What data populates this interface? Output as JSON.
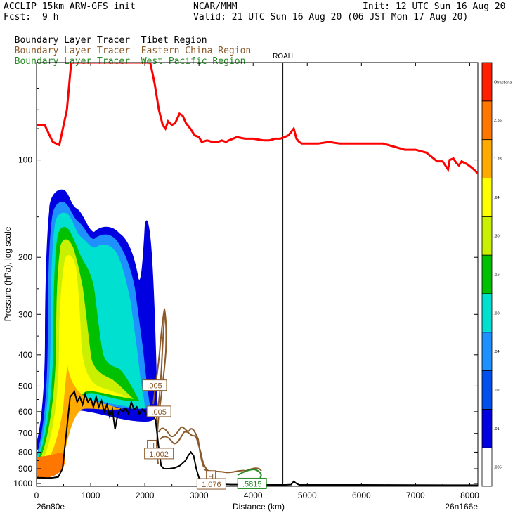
{
  "header": {
    "title_left": "ACCLIP 15km ARW-GFS init",
    "center": "NCAR/MMM",
    "init": "Init: 12 UTC Sun 16 Aug 20",
    "fcst_label": "Fcst:",
    "fcst_value": "9 h",
    "valid": "Valid: 21 UTC Sun 16 Aug 20 (06 JST Mon 17 Aug 20)"
  },
  "legend_lines": [
    {
      "prefix": "Boundary Layer Tracer",
      "region": "Tibet Region",
      "prefix_color": "#000000",
      "region_color": "#000000"
    },
    {
      "prefix": "Boundary Layer Tracer",
      "region": "Eastern China Region",
      "prefix_color": "#8b5a2b",
      "region_color": "#8b5a2b"
    },
    {
      "prefix": "Boundary Layer Tracer",
      "region": "West Pacific Region",
      "prefix_color": "#228b22",
      "region_color": "#228b22"
    }
  ],
  "chart_data": {
    "type": "cross-section",
    "xlabel": "Distance (km)",
    "ylabel": "Pressure (hPa), log scale",
    "x_ticks": [
      0,
      1000,
      2000,
      3000,
      4000,
      5000,
      6000,
      7000,
      8000
    ],
    "xlim": [
      0,
      8150
    ],
    "y_ticks": [
      100,
      200,
      300,
      400,
      500,
      600,
      700,
      800,
      900,
      1000
    ],
    "ylim": [
      50,
      1020
    ],
    "endpoints": {
      "left": "26n80e",
      "right": "26n166e"
    },
    "station": {
      "name": "ROAH",
      "distance_km": 4550
    },
    "colorbar": {
      "levels": [
        ".005",
        ".01",
        ".02",
        ".04",
        ".08",
        ".16",
        ".30",
        ".64",
        "1.28",
        "2.56",
        "Ofractions"
      ],
      "colors": [
        "#ffffff",
        "#0000e0",
        "#0050f0",
        "#1e90ff",
        "#00e0d0",
        "#00c000",
        "#c8f000",
        "#ffff00",
        "#ffaa00",
        "#ff7700",
        "#ff2000"
      ]
    },
    "tropopause_color": "#ff0000",
    "tropopause": [
      [
        0,
        78
      ],
      [
        150,
        78
      ],
      [
        300,
        88
      ],
      [
        420,
        90
      ],
      [
        560,
        70
      ],
      [
        640,
        50
      ],
      [
        2100,
        50
      ],
      [
        2180,
        58
      ],
      [
        2260,
        70
      ],
      [
        2330,
        78
      ],
      [
        2380,
        80
      ],
      [
        2430,
        76
      ],
      [
        2500,
        78
      ],
      [
        2560,
        77
      ],
      [
        2640,
        72
      ],
      [
        2700,
        73
      ],
      [
        2760,
        77
      ],
      [
        2840,
        80
      ],
      [
        2920,
        84
      ],
      [
        3000,
        85
      ],
      [
        3050,
        88
      ],
      [
        3150,
        87
      ],
      [
        3250,
        88
      ],
      [
        3350,
        88
      ],
      [
        3420,
        87
      ],
      [
        3500,
        88
      ],
      [
        3550,
        87
      ],
      [
        3700,
        85
      ],
      [
        3850,
        86
      ],
      [
        4000,
        86
      ],
      [
        4200,
        87
      ],
      [
        4300,
        87
      ],
      [
        4400,
        86
      ],
      [
        4500,
        86
      ],
      [
        4580,
        85
      ],
      [
        4650,
        84
      ],
      [
        4700,
        82
      ],
      [
        4750,
        80
      ],
      [
        4800,
        86
      ],
      [
        4850,
        88
      ],
      [
        4900,
        89
      ],
      [
        5000,
        89
      ],
      [
        5200,
        89
      ],
      [
        5400,
        88
      ],
      [
        5600,
        89
      ],
      [
        5800,
        89
      ],
      [
        6000,
        89
      ],
      [
        6200,
        89
      ],
      [
        6400,
        89
      ],
      [
        6600,
        91
      ],
      [
        6800,
        93
      ],
      [
        7000,
        93
      ],
      [
        7200,
        95
      ],
      [
        7400,
        101
      ],
      [
        7500,
        101
      ],
      [
        7550,
        104
      ],
      [
        7600,
        107
      ],
      [
        7630,
        100
      ],
      [
        7700,
        99
      ],
      [
        7750,
        102
      ],
      [
        7800,
        104
      ],
      [
        7850,
        101
      ],
      [
        7950,
        103
      ],
      [
        8050,
        106
      ],
      [
        8150,
        110
      ]
    ],
    "terrain_color": "#000000",
    "terrain": [
      [
        0,
        960
      ],
      [
        100,
        960
      ],
      [
        200,
        962
      ],
      [
        300,
        960
      ],
      [
        400,
        955
      ],
      [
        480,
        900
      ],
      [
        550,
        700
      ],
      [
        620,
        540
      ],
      [
        700,
        520
      ],
      [
        750,
        560
      ],
      [
        800,
        540
      ],
      [
        850,
        570
      ],
      [
        900,
        530
      ],
      [
        950,
        560
      ],
      [
        1000,
        545
      ],
      [
        1050,
        580
      ],
      [
        1100,
        540
      ],
      [
        1150,
        580
      ],
      [
        1200,
        555
      ],
      [
        1250,
        600
      ],
      [
        1300,
        570
      ],
      [
        1350,
        620
      ],
      [
        1400,
        590
      ],
      [
        1450,
        680
      ],
      [
        1500,
        610
      ],
      [
        1550,
        590
      ],
      [
        1600,
        600
      ],
      [
        1650,
        585
      ],
      [
        1700,
        610
      ],
      [
        1750,
        560
      ],
      [
        1800,
        590
      ],
      [
        1850,
        580
      ],
      [
        1900,
        610
      ],
      [
        1950,
        590
      ],
      [
        2000,
        600
      ],
      [
        2050,
        620
      ],
      [
        2100,
        600
      ],
      [
        2150,
        610
      ],
      [
        2200,
        640
      ],
      [
        2250,
        760
      ],
      [
        2300,
        880
      ],
      [
        2350,
        900
      ],
      [
        2450,
        900
      ],
      [
        2550,
        895
      ],
      [
        2650,
        880
      ],
      [
        2750,
        850
      ],
      [
        2800,
        820
      ],
      [
        2850,
        800
      ],
      [
        2900,
        820
      ],
      [
        2950,
        900
      ],
      [
        3000,
        960
      ],
      [
        3100,
        990
      ],
      [
        3200,
        1000
      ],
      [
        3300,
        1005
      ],
      [
        3400,
        1005
      ],
      [
        3600,
        1008
      ],
      [
        3800,
        1008
      ],
      [
        4000,
        1010
      ],
      [
        4200,
        1010
      ],
      [
        4400,
        1010
      ],
      [
        4600,
        1010
      ],
      [
        4700,
        1008
      ],
      [
        4750,
        985
      ],
      [
        4800,
        1000
      ],
      [
        4850,
        1010
      ],
      [
        5200,
        1010
      ],
      [
        6000,
        1010
      ],
      [
        7000,
        1011
      ],
      [
        8000,
        1012
      ],
      [
        8150,
        1012
      ]
    ],
    "contour_labels": [
      {
        "text": ".005",
        "x": 2180,
        "p": 498,
        "color": "#8b5a2b"
      },
      {
        "text": ".005",
        "x": 2260,
        "p": 600,
        "color": "#8b5a2b"
      },
      {
        "text": "H",
        "x": 2130,
        "p": 765,
        "color": "#8b5a2b"
      },
      {
        "text": "1.002",
        "x": 2260,
        "p": 810,
        "color": "#8b5a2b"
      },
      {
        "text": "H",
        "x": 3220,
        "p": 950,
        "color": "#8b5a2b"
      },
      {
        "text": "1.076",
        "x": 3230,
        "p": 1005,
        "color": "#8b5a2b"
      },
      {
        "text": ".5815",
        "x": 3980,
        "p": 1002,
        "color": "#228b22"
      }
    ]
  }
}
